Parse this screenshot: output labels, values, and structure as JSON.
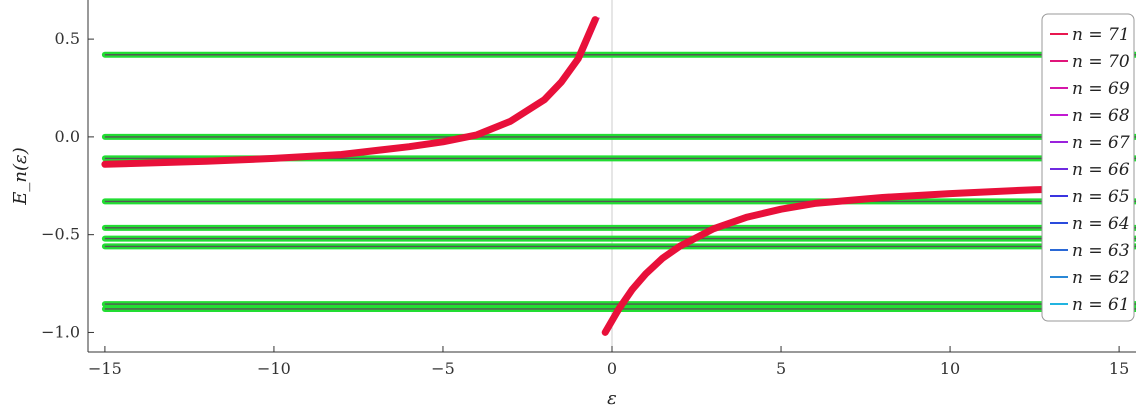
{
  "chart_data": {
    "type": "line",
    "xlabel": "ε",
    "ylabel": "E_n(ε)",
    "xlim": [
      -15.5,
      15.5
    ],
    "ylim": [
      -1.1,
      0.7
    ],
    "xticks": [
      -15,
      -10,
      -5,
      0,
      5,
      10,
      15
    ],
    "yticks": [
      -1.0,
      -0.5,
      0.0,
      0.5
    ],
    "xtick_labels": [
      "−15",
      "−10",
      "−5",
      "0",
      "5",
      "10",
      "15"
    ],
    "ytick_labels": [
      "−1.0",
      "−0.5",
      "0.0",
      "0.5"
    ],
    "grid": false,
    "legend_placement": "right",
    "legend": [
      {
        "label": "n = 71",
        "color": "#e8174f"
      },
      {
        "label": "n = 70",
        "color": "#e0157a"
      },
      {
        "label": "n = 69",
        "color": "#d516a8"
      },
      {
        "label": "n = 68",
        "color": "#c21ad2"
      },
      {
        "label": "n = 67",
        "color": "#9a22dc"
      },
      {
        "label": "n = 66",
        "color": "#6f2ae0"
      },
      {
        "label": "n = 65",
        "color": "#3a34e0"
      },
      {
        "label": "n = 64",
        "color": "#2a4bdc"
      },
      {
        "label": "n = 63",
        "color": "#2a68d6"
      },
      {
        "label": "n = 62",
        "color": "#2a88d6"
      },
      {
        "label": "n = 61",
        "color": "#21b4e0"
      }
    ],
    "flat_levels": [
      0.42,
      0.0,
      -0.11,
      -0.33,
      -0.465,
      -0.52,
      -0.56,
      -0.855,
      -0.88
    ],
    "left_branch": {
      "x": [
        -15,
        -12,
        -10,
        -8,
        -6,
        -5,
        -4,
        -3,
        -2,
        -1.5,
        -1,
        -0.5
      ],
      "y": [
        -0.14,
        -0.125,
        -0.11,
        -0.09,
        -0.05,
        -0.025,
        0.01,
        0.08,
        0.19,
        0.28,
        0.4,
        0.6
      ]
    },
    "right_branch": {
      "x": [
        -0.2,
        0.2,
        0.6,
        1,
        1.5,
        2,
        3,
        4,
        5,
        6,
        8,
        10,
        12.5,
        15
      ],
      "y": [
        -1.0,
        -0.88,
        -0.78,
        -0.7,
        -0.62,
        -0.56,
        -0.47,
        -0.41,
        -0.37,
        -0.34,
        -0.31,
        -0.29,
        -0.27,
        -0.26
      ]
    },
    "series_colors": {
      "points": "#e8103a",
      "flat": "#22dd33",
      "flat_core": "#555555",
      "axis": "#cccccc"
    }
  }
}
